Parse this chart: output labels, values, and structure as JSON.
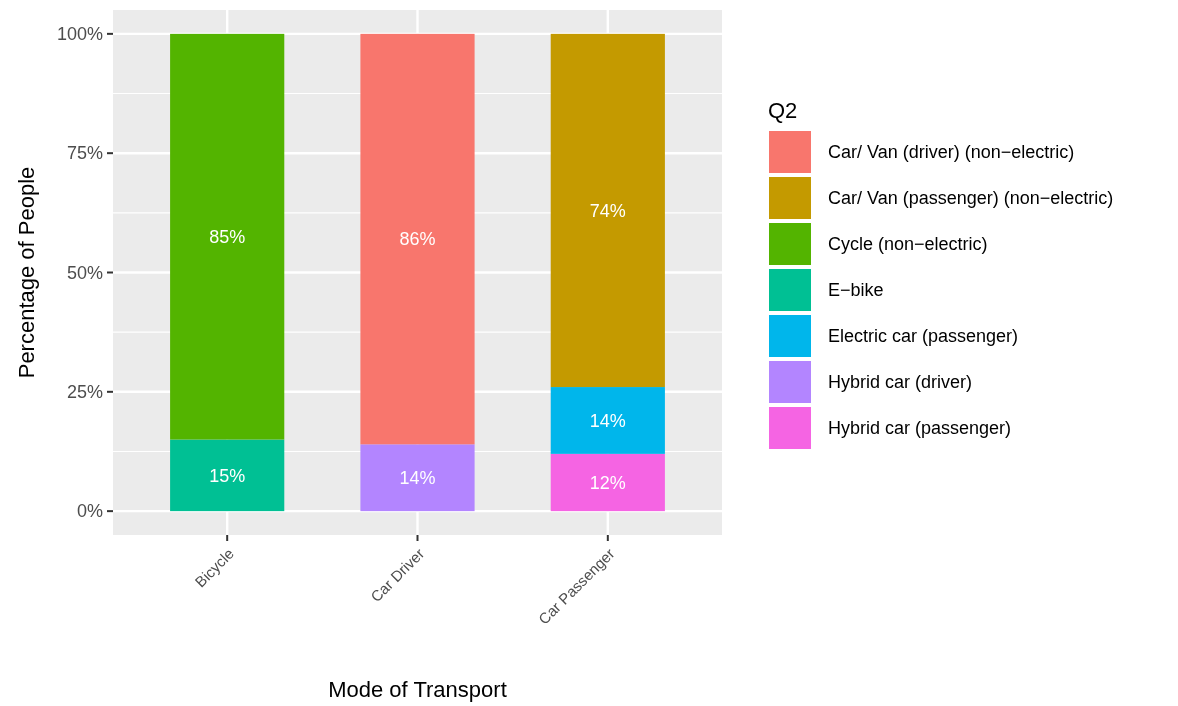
{
  "chart_data": {
    "type": "bar",
    "stacked": true,
    "xlabel": "Mode of Transport",
    "ylabel": "Percentage of People",
    "legend_title": "Q2",
    "legend": "right",
    "grid": true,
    "categories": [
      "Bicycle",
      "Car Driver",
      "Car Passenger"
    ],
    "ylim": [
      -5,
      105
    ],
    "yticks": [
      {
        "value": 0,
        "label": "0%"
      },
      {
        "value": 25,
        "label": "25%"
      },
      {
        "value": 50,
        "label": "50%"
      },
      {
        "value": 75,
        "label": "75%"
      },
      {
        "value": 100,
        "label": "100%"
      }
    ],
    "series": [
      {
        "name": "Hybrid car (passenger)",
        "color": "#f564e3",
        "values": [
          null,
          null,
          12
        ],
        "value_labels": [
          null,
          null,
          "12%"
        ]
      },
      {
        "name": "Hybrid car (driver)",
        "color": "#b385ff",
        "values": [
          null,
          14,
          null
        ],
        "value_labels": [
          null,
          "14%",
          null
        ]
      },
      {
        "name": "Electric car (passenger)",
        "color": "#00b6eb",
        "values": [
          null,
          null,
          14
        ],
        "value_labels": [
          null,
          null,
          "14%"
        ]
      },
      {
        "name": "E−bike",
        "color": "#00c094",
        "values": [
          15,
          null,
          null
        ],
        "value_labels": [
          "15%",
          null,
          null
        ]
      },
      {
        "name": "Cycle (non−electric)",
        "color": "#53b400",
        "values": [
          85,
          null,
          null
        ],
        "value_labels": [
          "85%",
          null,
          null
        ]
      },
      {
        "name": "Car/ Van (passenger) (non−electric)",
        "color": "#c49a00",
        "values": [
          null,
          null,
          74
        ],
        "value_labels": [
          null,
          null,
          "74%"
        ]
      },
      {
        "name": "Car/ Van (driver) (non−electric)",
        "color": "#f8766d",
        "values": [
          null,
          86,
          null
        ],
        "value_labels": [
          null,
          "86%",
          null
        ]
      }
    ]
  }
}
